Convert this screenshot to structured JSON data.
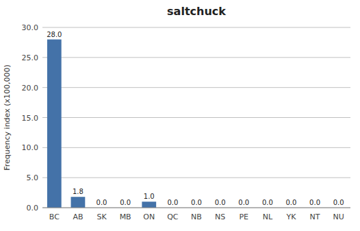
{
  "chart_data": {
    "type": "bar",
    "title": "saltchuck",
    "categories": [
      "BC",
      "AB",
      "SK",
      "MB",
      "ON",
      "QC",
      "NB",
      "NS",
      "PE",
      "NL",
      "YK",
      "NT",
      "NU"
    ],
    "values": [
      28.0,
      1.8,
      0.0,
      0.0,
      1.0,
      0.0,
      0.0,
      0.0,
      0.0,
      0.0,
      0.0,
      0.0,
      0.0
    ],
    "value_labels": [
      "28.0",
      "1.8",
      "0.0",
      "0.0",
      "1.0",
      "0.0",
      "0.0",
      "0.0",
      "0.0",
      "0.0",
      "0.0",
      "0.0",
      "0.0"
    ],
    "color": "#4472a8",
    "ylabel": "Frequency index (x100,000)",
    "ylim": [
      0,
      30.0
    ],
    "yticks": [
      {
        "value": 0.0,
        "label": "0.0"
      },
      {
        "value": 5.0,
        "label": "5.0"
      },
      {
        "value": 10.0,
        "label": "10.0"
      },
      {
        "value": 15.0,
        "label": "15.0"
      },
      {
        "value": 20.0,
        "label": "20.0"
      },
      {
        "value": 25.0,
        "label": "25.0"
      },
      {
        "value": 30.0,
        "label": "30.0"
      }
    ],
    "grid": true,
    "data_labels": true
  }
}
